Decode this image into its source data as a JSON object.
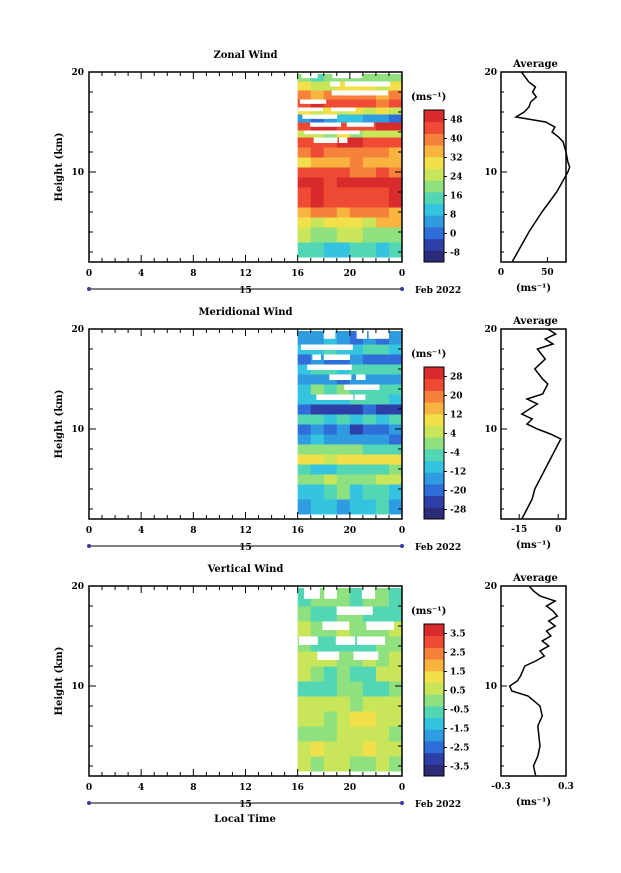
{
  "figure": {
    "x_axis_title": "Local Time",
    "date_label": "Feb 2022",
    "date_day": "15"
  },
  "chart_data": [
    {
      "type": "heatmap",
      "title": "Zonal Wind",
      "ylabel": "Height (km)",
      "unit_label": "(ms⁻¹)",
      "x_ticks": [
        "0",
        "4",
        "8",
        "12",
        "16",
        "20",
        "0"
      ],
      "y_ticks": [
        "10",
        "20"
      ],
      "xlim": [
        0,
        24
      ],
      "ylim": [
        1,
        20
      ],
      "data_start_hour": 16,
      "colorbar_ticks": [
        "48",
        "40",
        "32",
        "24",
        "16",
        "8",
        "0",
        "-8"
      ],
      "colorbar_range": [
        -12,
        52
      ],
      "bands": [
        {
          "z0": 1.5,
          "z1": 3.0,
          "v": 14
        },
        {
          "z0": 3.0,
          "z1": 4.5,
          "v": 22
        },
        {
          "z0": 4.5,
          "z1": 5.5,
          "v": 30
        },
        {
          "z0": 5.5,
          "z1": 6.5,
          "v": 38
        },
        {
          "z0": 6.5,
          "z1": 8.5,
          "v": 46
        },
        {
          "z0": 8.5,
          "z1": 9.5,
          "v": 50
        },
        {
          "z0": 9.5,
          "z1": 10.5,
          "v": 44
        },
        {
          "z0": 10.5,
          "z1": 11.5,
          "v": 34
        },
        {
          "z0": 11.5,
          "z1": 12.5,
          "v": 40
        },
        {
          "z0": 12.5,
          "z1": 13.5,
          "v": 44
        },
        {
          "z0": 13.5,
          "z1": 14.2,
          "v": 24
        },
        {
          "z0": 14.2,
          "z1": 15.0,
          "v": 48
        },
        {
          "z0": 15.0,
          "z1": 15.8,
          "v": 6
        },
        {
          "z0": 15.8,
          "z1": 16.5,
          "v": 30
        },
        {
          "z0": 16.5,
          "z1": 17.3,
          "v": 44
        },
        {
          "z0": 17.3,
          "z1": 18.2,
          "v": 38
        },
        {
          "z0": 18.2,
          "z1": 19.1,
          "v": 26
        },
        {
          "z0": 19.1,
          "z1": 19.8,
          "v": 18
        }
      ],
      "profile": {
        "xlim": [
          0,
          70
        ],
        "x_ticks": [
          "0",
          "50"
        ],
        "y_ticks": [
          "10",
          "20"
        ],
        "title": "Average",
        "xlabel": "(ms⁻¹)",
        "z": [
          1,
          2,
          3,
          4,
          5,
          6,
          7,
          8,
          9,
          10,
          10.5,
          11,
          12,
          13,
          13.5,
          14,
          14.5,
          15,
          15.5,
          16,
          16.5,
          17,
          17.5,
          18,
          18.5,
          19,
          19.5,
          20
        ],
        "v": [
          12,
          18,
          24,
          30,
          37,
          44,
          52,
          60,
          66,
          72,
          74,
          72,
          70,
          67,
          62,
          55,
          58,
          48,
          16,
          25,
          30,
          32,
          38,
          34,
          37,
          30,
          26,
          22
        ]
      }
    },
    {
      "type": "heatmap",
      "title": "Meridional Wind",
      "ylabel": "Height (km)",
      "unit_label": "(ms⁻¹)",
      "x_ticks": [
        "0",
        "4",
        "8",
        "12",
        "16",
        "20",
        "0"
      ],
      "y_ticks": [
        "10",
        "20"
      ],
      "xlim": [
        0,
        24
      ],
      "ylim": [
        1,
        20
      ],
      "data_start_hour": 16,
      "colorbar_ticks": [
        "28",
        "20",
        "12",
        "4",
        "-4",
        "-12",
        "-20",
        "-28"
      ],
      "colorbar_range": [
        -32,
        32
      ],
      "bands": [
        {
          "z0": 1.5,
          "z1": 3.0,
          "v": -10
        },
        {
          "z0": 3.0,
          "z1": 4.5,
          "v": -6
        },
        {
          "z0": 4.5,
          "z1": 5.5,
          "v": 2
        },
        {
          "z0": 5.5,
          "z1": 6.5,
          "v": -4
        },
        {
          "z0": 6.5,
          "z1": 7.5,
          "v": 8
        },
        {
          "z0": 7.5,
          "z1": 8.5,
          "v": -2
        },
        {
          "z0": 8.5,
          "z1": 9.5,
          "v": -14
        },
        {
          "z0": 9.5,
          "z1": 10.5,
          "v": -20
        },
        {
          "z0": 10.5,
          "z1": 11.5,
          "v": -6
        },
        {
          "z0": 11.5,
          "z1": 12.5,
          "v": -22
        },
        {
          "z0": 12.5,
          "z1": 13.5,
          "v": -10
        },
        {
          "z0": 13.5,
          "z1": 14.5,
          "v": -4
        },
        {
          "z0": 14.5,
          "z1": 15.5,
          "v": -16
        },
        {
          "z0": 15.5,
          "z1": 16.5,
          "v": -8
        },
        {
          "z0": 16.5,
          "z1": 17.5,
          "v": -18
        },
        {
          "z0": 17.5,
          "z1": 18.5,
          "v": -6
        },
        {
          "z0": 18.5,
          "z1": 19.8,
          "v": -14
        }
      ],
      "profile": {
        "xlim": [
          -22,
          3
        ],
        "x_ticks": [
          "-15",
          "0"
        ],
        "y_ticks": [
          "10",
          "20"
        ],
        "title": "Average",
        "xlabel": "(ms⁻¹)",
        "z": [
          1,
          2,
          3,
          4,
          5,
          6,
          7,
          8,
          9,
          9.5,
          10,
          10.5,
          11,
          11.5,
          12,
          12.5,
          13,
          13.5,
          14,
          14.5,
          15,
          16,
          17,
          18,
          18.5,
          19,
          19.5,
          20
        ],
        "v": [
          -14,
          -12,
          -10,
          -9,
          -7,
          -5,
          -3,
          -1,
          1,
          -3,
          -8,
          -12,
          -10,
          -14,
          -11,
          -8,
          -12,
          -6,
          -5,
          -4,
          -6,
          -9,
          -5,
          -8,
          -2,
          -5,
          -1,
          -4
        ]
      }
    },
    {
      "type": "heatmap",
      "title": "Vertical Wind",
      "ylabel": "Height (km)",
      "unit_label": "(ms⁻¹)",
      "x_ticks": [
        "0",
        "4",
        "8",
        "12",
        "16",
        "20",
        "0"
      ],
      "y_ticks": [
        "10",
        "20"
      ],
      "xlim": [
        0,
        24
      ],
      "ylim": [
        1,
        20
      ],
      "data_start_hour": 16,
      "colorbar_ticks": [
        "3.5",
        "2.5",
        "1.5",
        "0.5",
        "-0.5",
        "-1.5",
        "-2.5",
        "-3.5"
      ],
      "colorbar_range": [
        -4,
        4
      ],
      "bands": [
        {
          "z0": 1.5,
          "z1": 3.0,
          "v": 0.4
        },
        {
          "z0": 3.0,
          "z1": 4.5,
          "v": 0.7
        },
        {
          "z0": 4.5,
          "z1": 6.0,
          "v": 0.3
        },
        {
          "z0": 6.0,
          "z1": 7.5,
          "v": 0.6
        },
        {
          "z0": 7.5,
          "z1": 9.0,
          "v": 0.2
        },
        {
          "z0": 9.0,
          "z1": 10.5,
          "v": -0.3
        },
        {
          "z0": 10.5,
          "z1": 12.0,
          "v": 0.0
        },
        {
          "z0": 12.0,
          "z1": 13.5,
          "v": 0.4
        },
        {
          "z0": 13.5,
          "z1": 15.0,
          "v": -0.2
        },
        {
          "z0": 15.0,
          "z1": 16.5,
          "v": 0.1
        },
        {
          "z0": 16.5,
          "z1": 18.0,
          "v": -0.4
        },
        {
          "z0": 18.0,
          "z1": 19.8,
          "v": 0.0
        }
      ],
      "profile": {
        "xlim": [
          -0.3,
          0.3
        ],
        "x_ticks": [
          "-0.3",
          "0.3"
        ],
        "y_ticks": [
          "10",
          "20"
        ],
        "title": "Average",
        "xlabel": "(ms⁻¹)",
        "z": [
          1,
          2,
          3,
          4,
          5,
          6,
          7,
          8,
          9,
          9.5,
          10,
          10.5,
          11,
          12,
          12.5,
          13,
          13.5,
          14,
          14.5,
          15,
          15.5,
          16,
          16.5,
          17,
          17.5,
          18,
          18.5,
          19,
          19.5,
          20
        ],
        "v": [
          0.02,
          0.0,
          0.04,
          0.06,
          0.05,
          0.04,
          0.08,
          0.06,
          -0.05,
          -0.2,
          -0.22,
          -0.15,
          -0.12,
          -0.08,
          0.02,
          0.1,
          0.06,
          0.14,
          0.08,
          0.16,
          0.12,
          0.2,
          0.14,
          0.22,
          0.18,
          0.12,
          0.2,
          0.06,
          0.0,
          -0.04
        ]
      }
    }
  ]
}
